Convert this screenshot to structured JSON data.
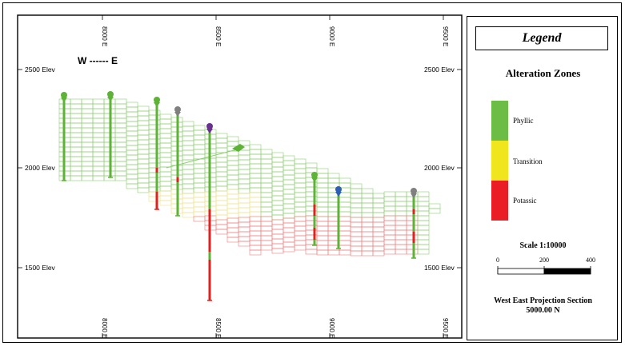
{
  "section": {
    "direction_label": "W ------ E",
    "easting_labels": [
      "8000 E",
      "8500 E",
      "9000 E",
      "9500 E"
    ],
    "elevation_labels": [
      "2500 Elev",
      "2000 Elev",
      "1500 Elev"
    ]
  },
  "legend": {
    "title": "Legend",
    "subtitle": "Alteration Zones",
    "zones": [
      {
        "label": "Phyllic",
        "color": "#6cbd45"
      },
      {
        "label": "Transition",
        "color": "#f0e61e"
      },
      {
        "label": "Potassic",
        "color": "#ea1c24"
      }
    ],
    "scale": {
      "title": "Scale 1:10000",
      "ticks": [
        "0",
        "200",
        "400"
      ]
    },
    "projection_line1": "West East Projection Section",
    "projection_line2": "5000.00 N"
  },
  "colors": {
    "phyllic_block": "#8ccf70",
    "transition_block": "#eee38a",
    "potassic_block": "#f07c7c",
    "drillhole_green": "#5cb335",
    "potassic_red": "#e0211f",
    "gray_collar": "#808080",
    "blue_collar": "#2e5fb5",
    "purple_collar": "#6a2f8f"
  }
}
